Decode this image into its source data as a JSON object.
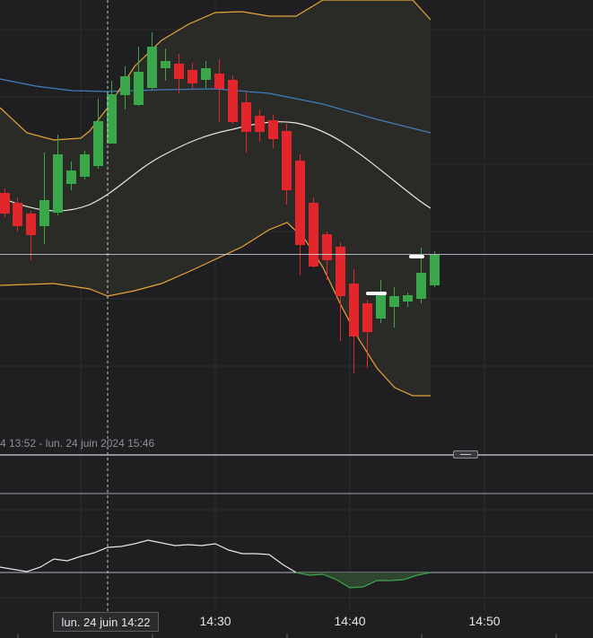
{
  "range_label": "4 13:52 - lun. 24 juin 2024 15:46",
  "crosshair_time_label": "lun. 24 juin 14:22",
  "time_axis": {
    "ticks": [
      "14:30",
      "14:40",
      "14:50"
    ]
  },
  "colors": {
    "background": "#1f1f21",
    "bullish": "#3aa84a",
    "bearish": "#e3262b",
    "bollinger_band": "#e8a43a",
    "bollinger_middle": "#e9e9e9",
    "moving_average": "#3f7fbf",
    "price_line": "#cdd9e6",
    "oscillator_line": "#e6e6e6",
    "oscillator_negative": "#3aa84a"
  },
  "icons": {
    "pane_handle": "pane-resize-handle-icon"
  }
}
